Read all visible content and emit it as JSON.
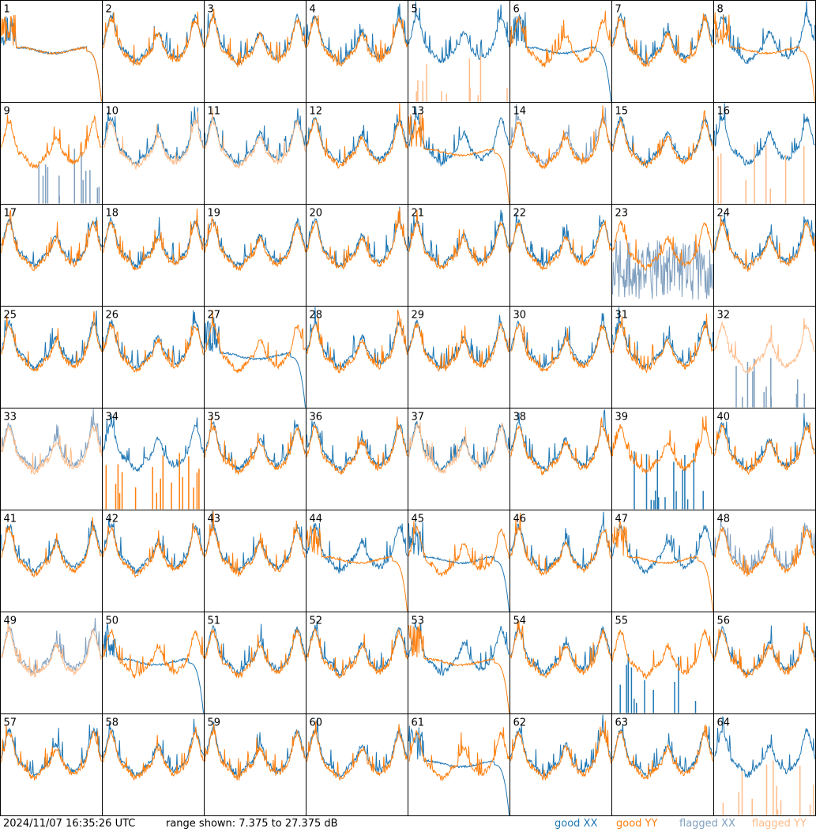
{
  "footer": {
    "timestamp": "2024/11/07 16:35:26 UTC",
    "range": "range shown: 7.375 to 27.375 dB"
  },
  "legend": {
    "good_xx": "good XX",
    "good_yy": "good YY",
    "flagged_xx": "flagged XX",
    "flagged_yy": "flagged YY"
  },
  "colors": {
    "good_xx": "#1f77b4",
    "good_yy": "#ff7f0e",
    "flagged_xx": "#7f9fbf",
    "flagged_yy": "#ffbb88",
    "border": "#000000"
  },
  "chart_data": {
    "type": "line",
    "grid": "8x8 small multiples",
    "ylim_db": [
      7.375,
      27.375
    ],
    "panels": [
      {
        "id": "1",
        "xx": "rolloff",
        "yy": "rolloff"
      },
      {
        "id": "2",
        "xx": "good",
        "yy": "good"
      },
      {
        "id": "3",
        "xx": "good",
        "yy": "good"
      },
      {
        "id": "4",
        "xx": "good",
        "yy": "good"
      },
      {
        "id": "5",
        "xx": "good",
        "yy": "flagged-spikes"
      },
      {
        "id": "6",
        "xx": "rolloff",
        "yy": "good"
      },
      {
        "id": "7",
        "xx": "good",
        "yy": "good"
      },
      {
        "id": "8",
        "xx": "good",
        "yy": "rolloff"
      },
      {
        "id": "9",
        "xx": "flagged-spikes",
        "yy": "good"
      },
      {
        "id": "10",
        "xx": "good",
        "yy": "flagged-good"
      },
      {
        "id": "11",
        "xx": "good",
        "yy": "flagged-good"
      },
      {
        "id": "12",
        "xx": "good",
        "yy": "good"
      },
      {
        "id": "13",
        "xx": "good",
        "yy": "rolloff"
      },
      {
        "id": "14",
        "xx": "flagged-good",
        "yy": "good"
      },
      {
        "id": "15",
        "xx": "good",
        "yy": "good"
      },
      {
        "id": "16",
        "xx": "good",
        "yy": "flagged-spikes"
      },
      {
        "id": "17",
        "xx": "good",
        "yy": "good"
      },
      {
        "id": "18",
        "xx": "good",
        "yy": "good"
      },
      {
        "id": "19",
        "xx": "good",
        "yy": "good"
      },
      {
        "id": "20",
        "xx": "good",
        "yy": "good"
      },
      {
        "id": "21",
        "xx": "good",
        "yy": "good"
      },
      {
        "id": "22",
        "xx": "good",
        "yy": "good"
      },
      {
        "id": "23",
        "xx": "flagged-noise",
        "yy": "good"
      },
      {
        "id": "24",
        "xx": "good",
        "yy": "good"
      },
      {
        "id": "25",
        "xx": "good",
        "yy": "good"
      },
      {
        "id": "26",
        "xx": "good",
        "yy": "good"
      },
      {
        "id": "27",
        "xx": "rolloff",
        "yy": "good"
      },
      {
        "id": "28",
        "xx": "good",
        "yy": "good"
      },
      {
        "id": "29",
        "xx": "good",
        "yy": "good"
      },
      {
        "id": "30",
        "xx": "good",
        "yy": "good"
      },
      {
        "id": "31",
        "xx": "good",
        "yy": "good"
      },
      {
        "id": "32",
        "xx": "flagged-spikes",
        "yy": "flagged-good"
      },
      {
        "id": "33",
        "xx": "flagged-good",
        "yy": "flagged-good"
      },
      {
        "id": "34",
        "xx": "good",
        "yy": "spikes"
      },
      {
        "id": "35",
        "xx": "good",
        "yy": "good"
      },
      {
        "id": "36",
        "xx": "good",
        "yy": "good"
      },
      {
        "id": "37",
        "xx": "good",
        "yy": "flagged-good"
      },
      {
        "id": "38",
        "xx": "good",
        "yy": "good"
      },
      {
        "id": "39",
        "xx": "spikes",
        "yy": "good"
      },
      {
        "id": "40",
        "xx": "good",
        "yy": "good"
      },
      {
        "id": "41",
        "xx": "good",
        "yy": "good"
      },
      {
        "id": "42",
        "xx": "good",
        "yy": "good"
      },
      {
        "id": "43",
        "xx": "good",
        "yy": "good"
      },
      {
        "id": "44",
        "xx": "good",
        "yy": "rolloff"
      },
      {
        "id": "45",
        "xx": "rolloff",
        "yy": "good"
      },
      {
        "id": "46",
        "xx": "good",
        "yy": "good"
      },
      {
        "id": "47",
        "xx": "good",
        "yy": "rolloff"
      },
      {
        "id": "48",
        "xx": "flagged-good",
        "yy": "good"
      },
      {
        "id": "49",
        "xx": "flagged-good",
        "yy": "flagged-good"
      },
      {
        "id": "50",
        "xx": "rolloff",
        "yy": "good"
      },
      {
        "id": "51",
        "xx": "good",
        "yy": "good"
      },
      {
        "id": "52",
        "xx": "good",
        "yy": "good"
      },
      {
        "id": "53",
        "xx": "good",
        "yy": "rolloff"
      },
      {
        "id": "54",
        "xx": "good",
        "yy": "good"
      },
      {
        "id": "55",
        "xx": "spikes",
        "yy": "good"
      },
      {
        "id": "56",
        "xx": "good",
        "yy": "good"
      },
      {
        "id": "57",
        "xx": "good",
        "yy": "good"
      },
      {
        "id": "58",
        "xx": "good",
        "yy": "good"
      },
      {
        "id": "59",
        "xx": "good",
        "yy": "good"
      },
      {
        "id": "60",
        "xx": "good",
        "yy": "good"
      },
      {
        "id": "61",
        "xx": "rolloff",
        "yy": "good"
      },
      {
        "id": "62",
        "xx": "good",
        "yy": "good"
      },
      {
        "id": "63",
        "xx": "good",
        "yy": "good"
      },
      {
        "id": "64",
        "xx": "good",
        "yy": "flagged-spikes"
      }
    ]
  }
}
